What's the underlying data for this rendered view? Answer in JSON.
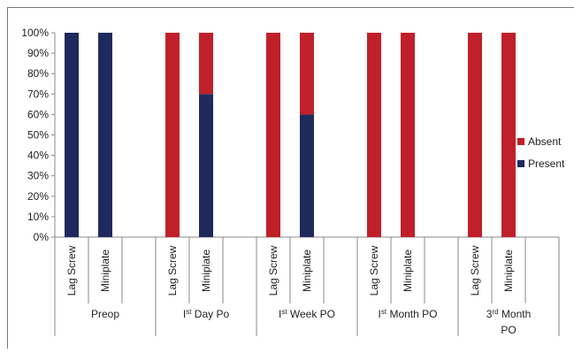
{
  "chart_data": {
    "type": "stacked_bar",
    "categories": [
      "Lag Screw",
      "Miniplate",
      null,
      "Lag Screw",
      "Miniplate",
      null,
      "Lag Screw",
      "Miniplate",
      null,
      "Lag Screw",
      "Miniplate",
      null,
      "Lag Screw",
      "Miniplate",
      null
    ],
    "groups": [
      {
        "label": [
          [
            {
              "text": "Preop"
            }
          ]
        ]
      },
      {
        "label": [
          [
            {
              "text": "I"
            },
            {
              "sup": "st"
            },
            {
              "text": " Day Po"
            }
          ]
        ]
      },
      {
        "label": [
          [
            {
              "text": "I"
            },
            {
              "sup": "st"
            },
            {
              "text": " Week PO"
            }
          ]
        ]
      },
      {
        "label": [
          [
            {
              "text": "I"
            },
            {
              "sup": "st"
            },
            {
              "text": " Month PO"
            }
          ]
        ]
      },
      {
        "label": [
          [
            {
              "text": "3"
            },
            {
              "sup": "rd"
            },
            {
              "text": " Month"
            }
          ],
          [
            {
              "text": "PO"
            }
          ]
        ]
      }
    ],
    "series": [
      {
        "name": "Present",
        "color": "#1f2a5c",
        "values": [
          100,
          100,
          null,
          0,
          70,
          null,
          0,
          60,
          null,
          0,
          0,
          null,
          0,
          0,
          null
        ]
      },
      {
        "name": "Absent",
        "color": "#c0202a",
        "values": [
          0,
          0,
          null,
          100,
          30,
          null,
          100,
          40,
          null,
          100,
          100,
          null,
          100,
          100,
          null
        ]
      }
    ],
    "ylim": [
      0,
      100
    ],
    "yticks": [
      {
        "value": 0,
        "label": "0%"
      },
      {
        "value": 10,
        "label": "10%"
      },
      {
        "value": 20,
        "label": "20%"
      },
      {
        "value": 30,
        "label": "30%"
      },
      {
        "value": 40,
        "label": "40%"
      },
      {
        "value": 50,
        "label": "50%"
      },
      {
        "value": 60,
        "label": "60%"
      },
      {
        "value": 70,
        "label": "70%"
      },
      {
        "value": 80,
        "label": "80%"
      },
      {
        "value": 90,
        "label": "90%"
      },
      {
        "value": 100,
        "label": "100%"
      }
    ],
    "legend": "right"
  }
}
